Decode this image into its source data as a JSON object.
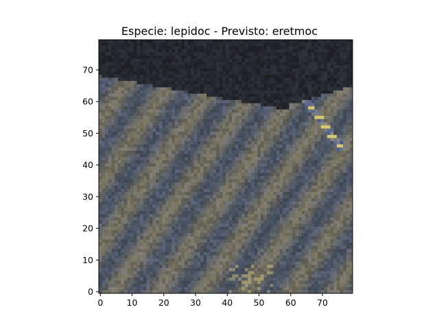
{
  "chart_data": {
    "type": "heatmap",
    "title": "Especie: lepidoc - Previsto: eretmoc",
    "xlabel": "",
    "ylabel": "",
    "image_size": [
      80,
      80
    ],
    "xlim": [
      -0.5,
      79.5
    ],
    "ylim": [
      79.5,
      -0.5
    ],
    "x_ticks": [
      0,
      10,
      20,
      30,
      40,
      50,
      60,
      70
    ],
    "y_ticks": [
      0,
      10,
      20,
      30,
      40,
      50,
      60,
      70
    ],
    "grid": false,
    "colors": {
      "dark": "#1e1e22",
      "slate": "#4a5566",
      "tan": "#8c8466",
      "blue": "#3a4f9a",
      "yellow": "#d8c86a",
      "lavender": "#8a88b0"
    }
  }
}
